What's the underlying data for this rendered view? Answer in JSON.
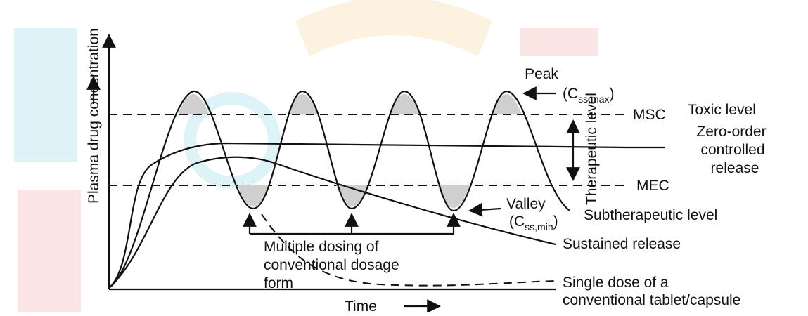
{
  "axes": {
    "y_label": "Plasma drug concentration",
    "x_label": "Time"
  },
  "labels": {
    "peak": "Peak",
    "peak_c": "(C",
    "peak_sub": "ss,max",
    "peak_close": ")",
    "toxic": "Toxic level",
    "msc": "MSC",
    "therapeutic": "Therapeutic level",
    "zero_order": [
      "Zero-order",
      "controlled",
      "release"
    ],
    "mec": "MEC",
    "valley": "Valley",
    "valley_c": "(C",
    "valley_sub": "ss,min",
    "valley_close": ")",
    "subtherapeutic": "Subtherapeutic level",
    "sustained": "Sustained release",
    "multiple": [
      "Multiple dosing of",
      "conventional dosage",
      "form"
    ],
    "single": [
      "Single dose of a",
      "conventional tablet/capsule"
    ]
  }
}
